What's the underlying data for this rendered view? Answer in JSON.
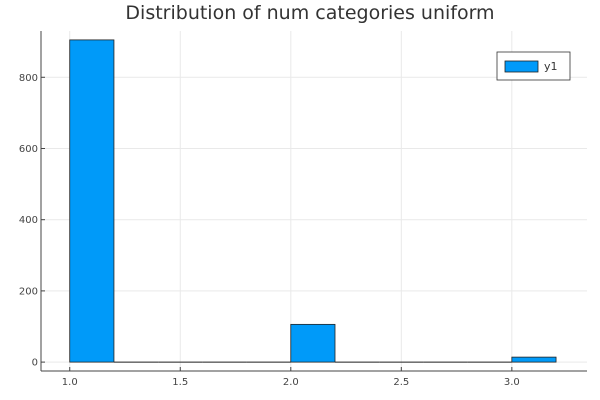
{
  "chart_data": {
    "type": "bar",
    "title": "Distribution of num categories uniform",
    "xlabel": "",
    "ylabel": "",
    "bin_width": 0.2,
    "bins": [
      {
        "start": 1.0,
        "end": 1.2,
        "value": 905
      },
      {
        "start": 1.2,
        "end": 1.4,
        "value": 0
      },
      {
        "start": 1.4,
        "end": 1.6,
        "value": 0
      },
      {
        "start": 1.6,
        "end": 1.8,
        "value": 0
      },
      {
        "start": 1.8,
        "end": 2.0,
        "value": 0
      },
      {
        "start": 2.0,
        "end": 2.2,
        "value": 106
      },
      {
        "start": 2.2,
        "end": 2.4,
        "value": 0
      },
      {
        "start": 2.4,
        "end": 2.6,
        "value": 0
      },
      {
        "start": 2.6,
        "end": 2.8,
        "value": 0
      },
      {
        "start": 2.8,
        "end": 3.0,
        "value": 0
      },
      {
        "start": 3.0,
        "end": 3.2,
        "value": 14
      }
    ],
    "xlim": [
      0.87,
      3.34
    ],
    "ylim": [
      -25,
      930
    ],
    "xticks": [
      "1.0",
      "1.5",
      "2.0",
      "2.5",
      "3.0"
    ],
    "yticks": [
      "0",
      "200",
      "400",
      "600",
      "800"
    ],
    "series": [
      {
        "name": "y1",
        "color": "#009af9"
      }
    ],
    "legend_position": "top-right",
    "grid": true
  }
}
